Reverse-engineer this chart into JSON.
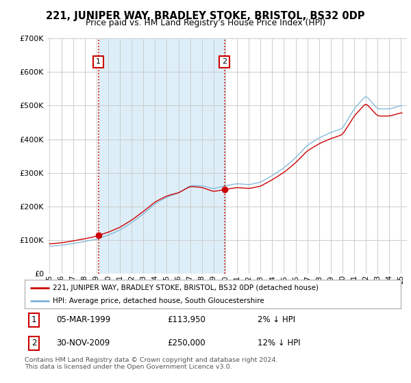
{
  "title": "221, JUNIPER WAY, BRADLEY STOKE, BRISTOL, BS32 0DP",
  "subtitle": "Price paid vs. HM Land Registry's House Price Index (HPI)",
  "legend_line1": "221, JUNIPER WAY, BRADLEY STOKE, BRISTOL, BS32 0DP (detached house)",
  "legend_line2": "HPI: Average price, detached house, South Gloucestershire",
  "transaction1_date": "05-MAR-1999",
  "transaction1_price": "£113,950",
  "transaction1_hpi": "2% ↓ HPI",
  "transaction2_date": "30-NOV-2009",
  "transaction2_price": "£250,000",
  "transaction2_hpi": "12% ↓ HPI",
  "footer": "Contains HM Land Registry data © Crown copyright and database right 2024.\nThis data is licensed under the Open Government Licence v3.0.",
  "sale1_year": 1999.17,
  "sale1_price": 113950,
  "sale2_year": 2009.92,
  "sale2_price": 250000,
  "hpi_color": "#7ab4d8",
  "property_color": "#cc0000",
  "sale_marker_color": "#cc0000",
  "shade_color": "#ddeef8",
  "ylim": [
    0,
    700000
  ],
  "xlim_start": 1994.8,
  "xlim_end": 2025.5,
  "grid_color": "#cccccc",
  "background_color": "#ffffff",
  "vline_color": "#cc0000",
  "vline_style": ":"
}
